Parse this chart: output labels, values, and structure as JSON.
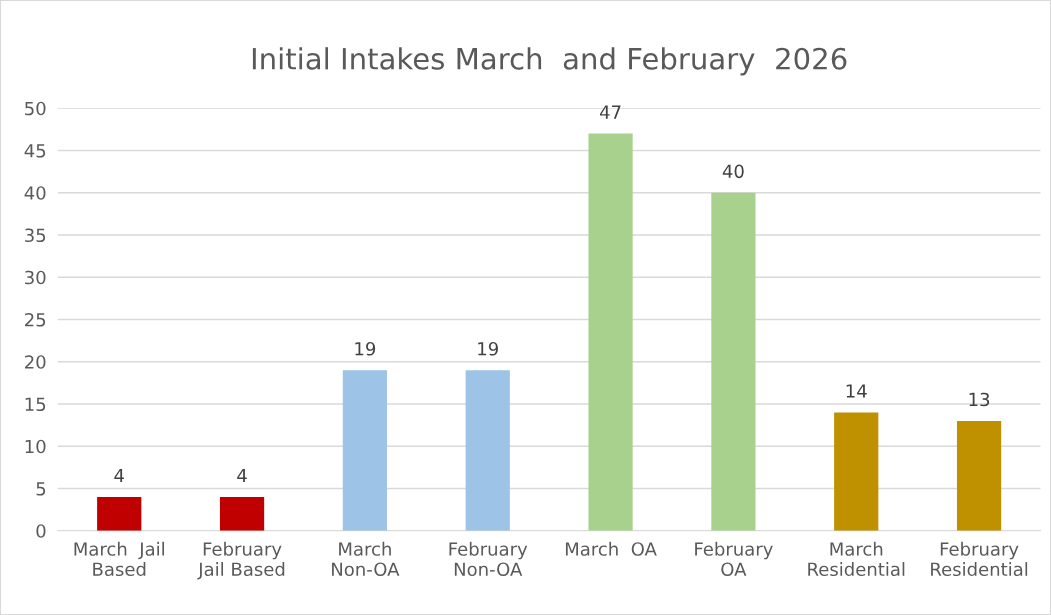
{
  "chart_data": {
    "type": "bar",
    "title": "Initial Intakes March  and February  2026",
    "categories": [
      "March  Jail\nBased",
      "February\nJail Based",
      "March\nNon-OA",
      "February\nNon-OA",
      "March  OA",
      "February\nOA",
      "March\nResidential",
      "February\nResidential"
    ],
    "values": [
      4,
      4,
      19,
      19,
      47,
      40,
      14,
      13
    ],
    "colors": [
      "#c00000",
      "#c00000",
      "#9dc3e6",
      "#9dc3e6",
      "#a9d18e",
      "#a9d18e",
      "#bf9000",
      "#bf9000"
    ],
    "ylim": [
      0,
      50
    ],
    "yticks": [
      0,
      5,
      10,
      15,
      20,
      25,
      30,
      35,
      40,
      45,
      50
    ],
    "grid": "y",
    "data_labels": true,
    "legend": false
  }
}
